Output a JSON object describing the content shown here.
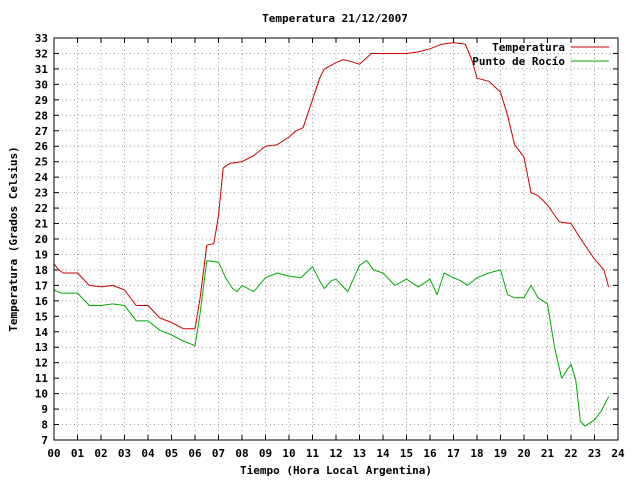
{
  "chart_data": {
    "type": "line",
    "title": "Temperatura 21/12/2007",
    "xlabel": "Tiempo (Hora Local Argentina)",
    "ylabel": "Temperatura (Grados Celsius)",
    "xlim": [
      0,
      24
    ],
    "ylim": [
      7,
      33
    ],
    "x_ticks": [
      "00",
      "01",
      "02",
      "03",
      "04",
      "05",
      "06",
      "07",
      "08",
      "09",
      "10",
      "11",
      "12",
      "13",
      "14",
      "15",
      "16",
      "17",
      "18",
      "19",
      "20",
      "21",
      "22",
      "23",
      "24"
    ],
    "y_ticks": [
      7,
      8,
      9,
      10,
      11,
      12,
      13,
      14,
      15,
      16,
      17,
      18,
      19,
      20,
      21,
      22,
      23,
      24,
      25,
      26,
      27,
      28,
      29,
      30,
      31,
      32,
      33
    ],
    "grid": true,
    "legend_position": "top-right",
    "series": [
      {
        "name": "Temperatura",
        "color": "#cc0000",
        "x": [
          0.0,
          0.2,
          0.4,
          1.0,
          1.5,
          2.0,
          2.5,
          3.0,
          3.5,
          4.0,
          4.5,
          5.0,
          5.5,
          6.0,
          6.2,
          6.5,
          6.8,
          7.0,
          7.2,
          7.5,
          8.0,
          8.5,
          9.0,
          9.5,
          10.0,
          10.3,
          10.6,
          11.0,
          11.3,
          11.5,
          12.0,
          12.3,
          12.6,
          13.0,
          13.5,
          14.0,
          14.5,
          15.0,
          15.5,
          16.0,
          16.5,
          17.0,
          17.5,
          17.8,
          18.0,
          18.5,
          19.0,
          19.3,
          19.6,
          20.0,
          20.3,
          20.6,
          21.0,
          21.5,
          22.0,
          22.5,
          23.0,
          23.4,
          23.6
        ],
        "y": [
          18.4,
          18.0,
          17.8,
          17.8,
          17.0,
          16.9,
          17.0,
          16.7,
          15.7,
          15.7,
          14.9,
          14.6,
          14.2,
          14.2,
          16.0,
          19.6,
          19.7,
          21.5,
          24.6,
          24.9,
          25.0,
          25.4,
          26.0,
          26.1,
          26.6,
          27.0,
          27.2,
          29.0,
          30.4,
          31.0,
          31.4,
          31.6,
          31.5,
          31.3,
          32.0,
          32.0,
          32.0,
          32.0,
          32.1,
          32.3,
          32.6,
          32.7,
          32.6,
          31.5,
          30.4,
          30.2,
          29.5,
          28.0,
          26.1,
          25.3,
          23.0,
          22.8,
          22.2,
          21.1,
          21.0,
          19.8,
          18.7,
          18.0,
          16.9
        ]
      },
      {
        "name": "Punto de Rocío",
        "color": "#00aa00",
        "x": [
          0.0,
          0.3,
          0.6,
          1.0,
          1.5,
          2.0,
          2.5,
          3.0,
          3.5,
          4.0,
          4.5,
          5.0,
          5.5,
          6.0,
          6.2,
          6.5,
          7.0,
          7.3,
          7.6,
          7.8,
          8.0,
          8.5,
          9.0,
          9.5,
          10.0,
          10.5,
          11.0,
          11.3,
          11.5,
          11.8,
          12.0,
          12.5,
          13.0,
          13.3,
          13.6,
          14.0,
          14.5,
          15.0,
          15.5,
          16.0,
          16.3,
          16.6,
          17.0,
          17.3,
          17.6,
          18.0,
          18.5,
          19.0,
          19.3,
          19.6,
          20.0,
          20.3,
          20.6,
          21.0,
          21.3,
          21.6,
          22.0,
          22.2,
          22.4,
          22.6,
          23.0,
          23.3,
          23.6
        ],
        "y": [
          16.7,
          16.5,
          16.5,
          16.5,
          15.7,
          15.7,
          15.8,
          15.7,
          14.7,
          14.7,
          14.1,
          13.8,
          13.4,
          13.1,
          15.0,
          18.6,
          18.5,
          17.5,
          16.8,
          16.6,
          17.0,
          16.6,
          17.5,
          17.8,
          17.6,
          17.5,
          18.2,
          17.3,
          16.8,
          17.3,
          17.4,
          16.6,
          18.3,
          18.6,
          18.0,
          17.8,
          17.0,
          17.4,
          16.9,
          17.4,
          16.4,
          17.8,
          17.5,
          17.3,
          17.0,
          17.5,
          17.8,
          18.0,
          16.4,
          16.2,
          16.2,
          17.0,
          16.2,
          15.8,
          13.0,
          11.0,
          11.9,
          10.9,
          8.2,
          7.9,
          8.3,
          8.9,
          9.8
        ]
      }
    ]
  }
}
